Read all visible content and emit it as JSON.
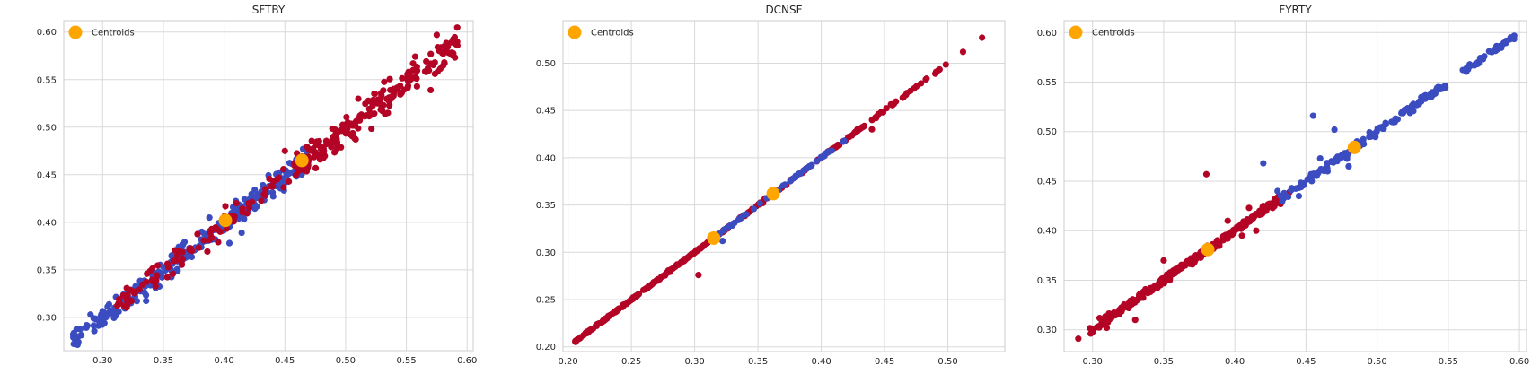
{
  "colors": {
    "cluster_red": "#b40426",
    "cluster_blue": "#3b4cc0",
    "centroid": "#ffa500",
    "grid": "#d9d9d9",
    "frame": "#cccccc"
  },
  "chart_data": [
    {
      "type": "scatter",
      "title": "SFTBY",
      "xlabel": "",
      "ylabel": "",
      "xlim": [
        0.268,
        0.605
      ],
      "ylim": [
        0.265,
        0.612
      ],
      "xticks": [
        0.3,
        0.35,
        0.4,
        0.45,
        0.5,
        0.55,
        0.6
      ],
      "yticks": [
        0.3,
        0.35,
        0.4,
        0.45,
        0.5,
        0.55,
        0.6
      ],
      "xtick_labels": [
        "0.30",
        "0.35",
        "0.40",
        "0.45",
        "0.50",
        "0.55",
        "0.60"
      ],
      "ytick_labels": [
        "0.30",
        "0.35",
        "0.40",
        "0.45",
        "0.50",
        "0.55",
        "0.60"
      ],
      "grid": true,
      "legend": {
        "position": "top-left",
        "entries": [
          {
            "label": "Centroids",
            "color": "#ffa500"
          }
        ]
      },
      "series": [
        {
          "cluster": "blue",
          "color": "#3b4cc0",
          "segments": [
            {
              "x0": 0.275,
              "x1": 0.47,
              "slope": 0.985,
              "intercept": 0.005,
              "jitter": 0.006,
              "count": 290
            }
          ]
        },
        {
          "cluster": "red",
          "color": "#b40426",
          "segments": [
            {
              "x0": 0.31,
              "x1": 0.47,
              "slope": 0.985,
              "intercept": 0.005,
              "jitter": 0.006,
              "count": 100
            },
            {
              "x0": 0.46,
              "x1": 0.592,
              "slope": 0.985,
              "intercept": 0.005,
              "jitter": 0.008,
              "count": 200
            }
          ]
        }
      ],
      "outliers": [
        {
          "cluster": "red",
          "points": [
            [
              0.575,
              0.597
            ],
            [
              0.587,
              0.589
            ],
            [
              0.592,
              0.586
            ],
            [
              0.57,
              0.539
            ],
            [
              0.45,
              0.475
            ],
            [
              0.41,
              0.42
            ]
          ]
        },
        {
          "cluster": "blue",
          "points": [
            [
              0.28,
              0.28
            ],
            [
              0.29,
              0.303
            ]
          ]
        }
      ],
      "centroids": [
        [
          0.401,
          0.402
        ],
        [
          0.464,
          0.465
        ]
      ]
    },
    {
      "type": "scatter",
      "title": "DCNSF",
      "xlabel": "",
      "ylabel": "",
      "xlim": [
        0.196,
        0.545
      ],
      "ylim": [
        0.195,
        0.545
      ],
      "xticks": [
        0.2,
        0.25,
        0.3,
        0.35,
        0.4,
        0.45,
        0.5
      ],
      "yticks": [
        0.2,
        0.25,
        0.3,
        0.35,
        0.4,
        0.45,
        0.5
      ],
      "xtick_labels": [
        "0.20",
        "0.25",
        "0.30",
        "0.35",
        "0.40",
        "0.45",
        "0.50"
      ],
      "ytick_labels": [
        "0.20",
        "0.25",
        "0.30",
        "0.35",
        "0.40",
        "0.45",
        "0.50"
      ],
      "grid": true,
      "legend": {
        "position": "top-left",
        "entries": [
          {
            "label": "Centroids",
            "color": "#ffa500"
          }
        ]
      },
      "series": [
        {
          "cluster": "red",
          "color": "#b40426",
          "segments": [
            {
              "x0": 0.205,
              "x1": 0.33,
              "slope": 1.0,
              "intercept": 0.0,
              "jitter": 0.0005,
              "count": 220
            },
            {
              "x0": 0.33,
              "x1": 0.4,
              "slope": 1.0,
              "intercept": 0.0,
              "jitter": 0.0005,
              "count": 40
            },
            {
              "x0": 0.4,
              "x1": 0.5,
              "slope": 1.0,
              "intercept": 0.0,
              "jitter": 0.0005,
              "count": 60
            }
          ]
        },
        {
          "cluster": "blue",
          "color": "#3b4cc0",
          "segments": [
            {
              "x0": 0.315,
              "x1": 0.42,
              "slope": 1.0,
              "intercept": 0.0,
              "jitter": 0.0005,
              "count": 60
            }
          ]
        }
      ],
      "outliers": [
        {
          "cluster": "red",
          "points": [
            [
              0.303,
              0.276
            ],
            [
              0.44,
              0.43
            ],
            [
              0.512,
              0.512
            ],
            [
              0.527,
              0.527
            ]
          ]
        },
        {
          "cluster": "blue",
          "points": [
            [
              0.322,
              0.312
            ]
          ]
        }
      ],
      "centroids": [
        [
          0.315,
          0.315
        ],
        [
          0.362,
          0.362
        ]
      ]
    },
    {
      "type": "scatter",
      "title": "FYRTY",
      "xlabel": "",
      "ylabel": "",
      "xlim": [
        0.28,
        0.605
      ],
      "ylim": [
        0.278,
        0.612
      ],
      "xticks": [
        0.3,
        0.35,
        0.4,
        0.45,
        0.5,
        0.55,
        0.6
      ],
      "yticks": [
        0.3,
        0.35,
        0.4,
        0.45,
        0.5,
        0.55,
        0.6
      ],
      "xtick_labels": [
        "0.30",
        "0.35",
        "0.40",
        "0.45",
        "0.50",
        "0.55",
        "0.60"
      ],
      "ytick_labels": [
        "0.30",
        "0.35",
        "0.40",
        "0.45",
        "0.50",
        "0.55",
        "0.60"
      ],
      "grid": true,
      "legend": {
        "position": "top-left",
        "entries": [
          {
            "label": "Centroids",
            "color": "#ffa500"
          }
        ]
      },
      "series": [
        {
          "cluster": "red",
          "color": "#b40426",
          "segments": [
            {
              "x0": 0.298,
              "x1": 0.44,
              "slope": 1.0,
              "intercept": 0.0,
              "jitter": 0.002,
              "count": 300
            }
          ]
        },
        {
          "cluster": "blue",
          "color": "#3b4cc0",
          "segments": [
            {
              "x0": 0.43,
              "x1": 0.548,
              "slope": 1.0,
              "intercept": 0.0,
              "jitter": 0.002,
              "count": 140
            },
            {
              "x0": 0.56,
              "x1": 0.597,
              "slope": 1.0,
              "intercept": 0.0,
              "jitter": 0.0015,
              "count": 40
            }
          ]
        }
      ],
      "outliers": [
        {
          "cluster": "red",
          "points": [
            [
              0.29,
              0.291
            ],
            [
              0.38,
              0.457
            ],
            [
              0.41,
              0.423
            ],
            [
              0.42,
              0.425
            ],
            [
              0.395,
              0.41
            ],
            [
              0.405,
              0.395
            ],
            [
              0.415,
              0.4
            ],
            [
              0.33,
              0.31
            ],
            [
              0.35,
              0.37
            ],
            [
              0.31,
              0.302
            ],
            [
              0.36,
              0.36
            ]
          ]
        },
        {
          "cluster": "blue",
          "points": [
            [
              0.42,
              0.468
            ],
            [
              0.455,
              0.516
            ],
            [
              0.47,
              0.502
            ],
            [
              0.46,
              0.473
            ],
            [
              0.465,
              0.468
            ],
            [
              0.48,
              0.465
            ],
            [
              0.475,
              0.476
            ],
            [
              0.44,
              0.443
            ],
            [
              0.445,
              0.435
            ],
            [
              0.43,
              0.44
            ],
            [
              0.49,
              0.49
            ]
          ]
        }
      ],
      "centroids": [
        [
          0.381,
          0.381
        ],
        [
          0.484,
          0.484
        ]
      ]
    }
  ]
}
